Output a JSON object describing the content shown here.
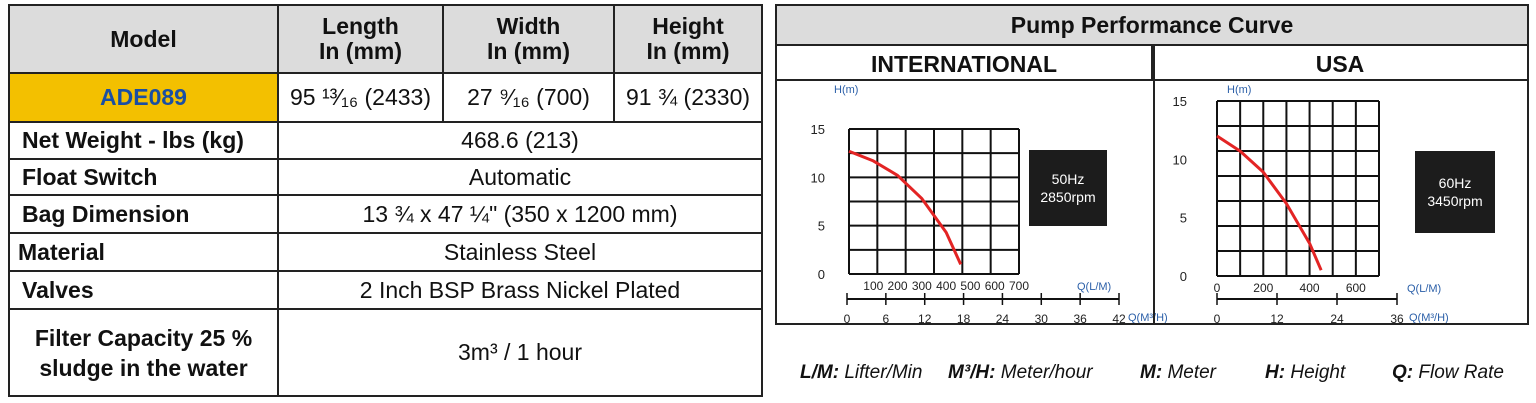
{
  "table": {
    "headers": {
      "model": "Model",
      "length_1": "Length",
      "length_2": "In (mm)",
      "width_1": "Width",
      "width_2": "In (mm)",
      "height_1": "Height",
      "height_2": "In (mm)"
    },
    "model_row": {
      "model": "ADE089",
      "length": "95 ¹³⁄₁₆ (2433)",
      "width": "27 ⁹⁄₁₆ (700)",
      "height": "91 ¾ (2330)"
    },
    "rows": [
      {
        "label": "Net Weight - lbs (kg)",
        "value": "468.6 (213)"
      },
      {
        "label": "Float Switch",
        "value": "Automatic"
      },
      {
        "label": "Bag Dimension",
        "value": "13 ¾ x 47 ¼\" (350 x 1200 mm)"
      },
      {
        "label": "Material",
        "value": "Stainless Steel"
      },
      {
        "label": "Valves",
        "value": "2 Inch BSP Brass Nickel Plated"
      }
    ],
    "filter": {
      "label_1": "Filter Capacity 25 %",
      "label_2": "sludge in the water",
      "value": "3m³ / 1 hour"
    }
  },
  "curve_panel": {
    "title": "Pump Performance Curve",
    "international_label": "INTERNATIONAL",
    "usa_label": "USA"
  },
  "chart_data": [
    {
      "type": "line",
      "name": "INTERNATIONAL",
      "ylabel": "H(m)",
      "xlabel": "Q(L/M)",
      "x2label": "Q(M³/H)",
      "y_ticks": [
        "15",
        "10",
        "5",
        "0"
      ],
      "x_ticks": [
        "100",
        "200",
        "300",
        "400",
        "500",
        "600",
        "700"
      ],
      "x2_ticks": [
        "0",
        "6",
        "12",
        "18",
        "24",
        "30",
        "36",
        "42"
      ],
      "xlim": [
        0,
        700
      ],
      "ylim": [
        0,
        15
      ],
      "box_line1": "50Hz",
      "box_line2": "2850rpm",
      "line_color": "#e32424",
      "points": [
        [
          0,
          12.7
        ],
        [
          100,
          11.7
        ],
        [
          200,
          10.2
        ],
        [
          300,
          7.8
        ],
        [
          400,
          4.3
        ],
        [
          460,
          1.0
        ]
      ]
    },
    {
      "type": "line",
      "name": "USA",
      "ylabel": "H(m)",
      "xlabel": "Q(L/M)",
      "x2label": "Q(M³/H)",
      "y_ticks": [
        "15",
        "10",
        "5",
        "0"
      ],
      "x_ticks": [
        "0",
        "200",
        "400",
        "600"
      ],
      "x2_ticks": [
        "0",
        "12",
        "24",
        "36"
      ],
      "xlim": [
        0,
        700
      ],
      "ylim": [
        0,
        15
      ],
      "box_line1": "60Hz",
      "box_line2": "3450rpm",
      "line_color": "#e32424",
      "points": [
        [
          0,
          12.0
        ],
        [
          100,
          10.7
        ],
        [
          200,
          8.9
        ],
        [
          300,
          6.2
        ],
        [
          400,
          2.8
        ],
        [
          450,
          0.5
        ]
      ]
    }
  ],
  "legend": {
    "lm_key": "L/M:",
    "lm_val": "Lifter/Min",
    "m3h_key": "M³/H:",
    "m3h_val": "Meter/hour",
    "m_key": "M:",
    "m_val": "Meter",
    "h_key": "H:",
    "h_val": "Height",
    "q_key": "Q:",
    "q_val": "Flow Rate"
  }
}
